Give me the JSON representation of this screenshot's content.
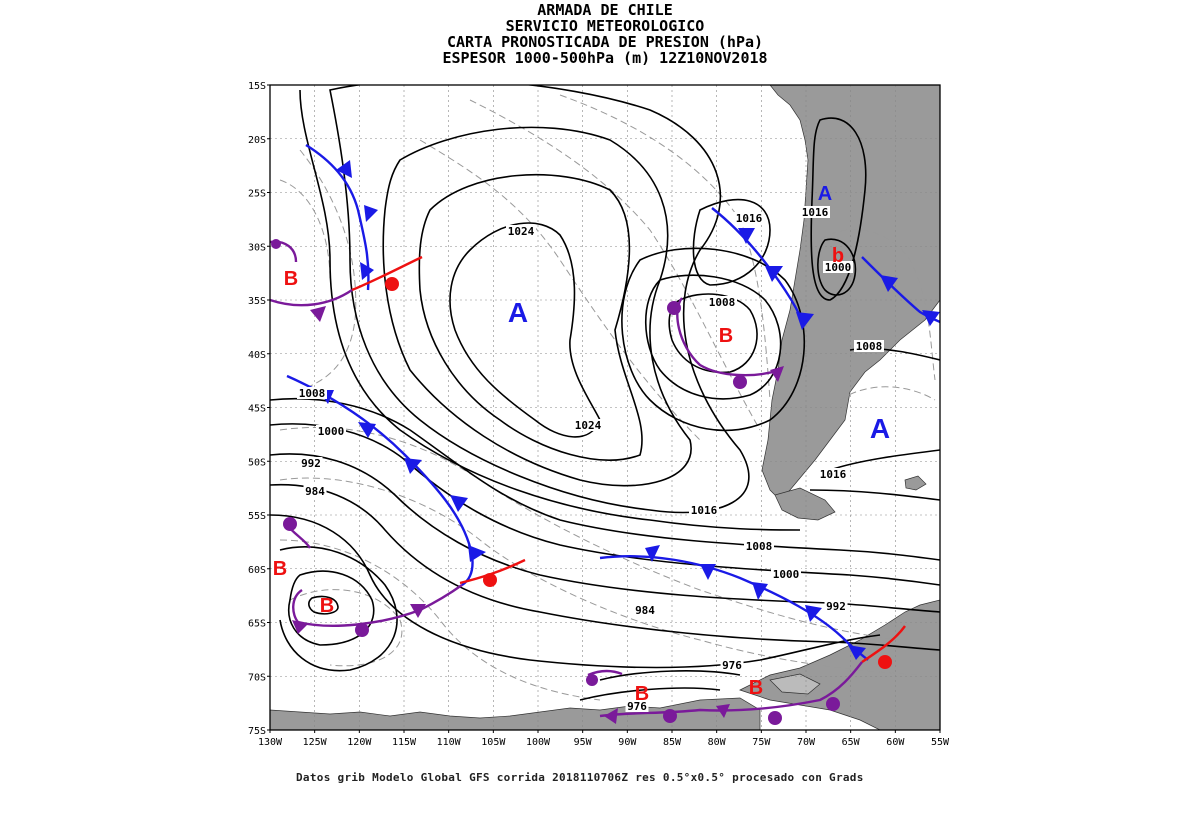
{
  "title": {
    "line1": "ARMADA DE CHILE",
    "line2": "SERVICIO METEOROLOGICO",
    "line3": "CARTA PRONOSTICADA DE PRESION (hPa)",
    "line4": "ESPESOR 1000-500hPa (m) 12Z10NOV2018"
  },
  "footer": "Datos grib Modelo Global GFS corrida 2018110706Z res 0.5°x0.5° procesado con Grads",
  "axes": {
    "lat_labels": [
      "15S",
      "20S",
      "25S",
      "30S",
      "35S",
      "40S",
      "45S",
      "50S",
      "55S",
      "60S",
      "65S",
      "70S",
      "75S"
    ],
    "lon_labels": [
      "130W",
      "125W",
      "120W",
      "115W",
      "110W",
      "105W",
      "100W",
      "95W",
      "90W",
      "85W",
      "80W",
      "75W",
      "70W",
      "65W",
      "60W",
      "55W"
    ]
  },
  "isobar_labels": [
    {
      "text": "1024"
    },
    {
      "text": "1024"
    },
    {
      "text": "1016"
    },
    {
      "text": "1016"
    },
    {
      "text": "1008"
    },
    {
      "text": "1000"
    },
    {
      "text": "1008"
    },
    {
      "text": "1016"
    },
    {
      "text": "1008"
    },
    {
      "text": "1000"
    },
    {
      "text": "992"
    },
    {
      "text": "984"
    },
    {
      "text": "1016"
    },
    {
      "text": "1008"
    },
    {
      "text": "1000"
    },
    {
      "text": "992"
    },
    {
      "text": "984"
    },
    {
      "text": "976"
    },
    {
      "text": "976"
    }
  ],
  "pressure_centers": [
    {
      "letter": "A",
      "type": "high"
    },
    {
      "letter": "A",
      "type": "high"
    },
    {
      "letter": "A",
      "type": "high"
    },
    {
      "letter": "B",
      "type": "low"
    },
    {
      "letter": "B",
      "type": "low"
    },
    {
      "letter": "B",
      "type": "low"
    },
    {
      "letter": "B",
      "type": "low"
    },
    {
      "letter": "B",
      "type": "low"
    },
    {
      "letter": "B",
      "type": "low"
    },
    {
      "letter": "b",
      "type": "low"
    }
  ],
  "colors": {
    "cold_front": "#1a1ae6",
    "warm_front": "#ee1111",
    "occluded_front": "#7a1a9a",
    "land": "#9a9a9a",
    "high_label": "#1a1ae6",
    "low_label": "#ee1111"
  }
}
